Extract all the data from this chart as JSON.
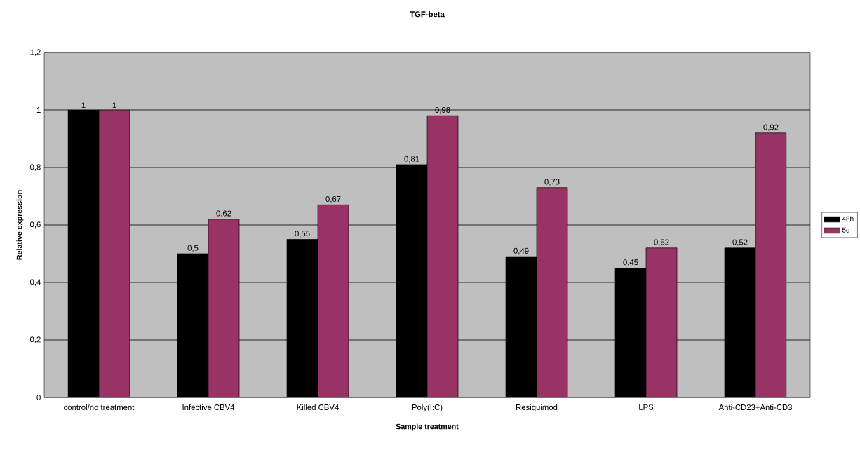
{
  "chart_data": {
    "type": "bar",
    "title": "TGF-beta",
    "xlabel": "Sample treatment",
    "ylabel": "Relative expression",
    "categories": [
      "control/no treatment",
      "Infective CBV4",
      "Killed CBV4",
      "Poly(I:C)",
      "Resiquimod",
      "LPS",
      "Anti-CD23+Anti-CD3"
    ],
    "series": [
      {
        "name": "48h",
        "color": "#000000",
        "values": [
          1,
          0.5,
          0.55,
          0.81,
          0.49,
          0.45,
          0.52
        ],
        "value_labels": [
          "1",
          "0,5",
          "0,55",
          "0,81",
          "0,49",
          "0,45",
          "0,52"
        ]
      },
      {
        "name": "5d",
        "color": "#993366",
        "values": [
          1,
          0.62,
          0.67,
          0.98,
          0.73,
          0.52,
          0.92
        ],
        "value_labels": [
          "1",
          "0,62",
          "0,67",
          "0,98",
          "0,73",
          "0,52",
          "0,92"
        ]
      }
    ],
    "ylim": [
      0,
      1.2
    ],
    "yticks": [
      0,
      {
        "value": 0.2,
        "label": "0,2"
      },
      {
        "value": 0.4,
        "label": "0,4"
      },
      {
        "value": 0.6,
        "label": "0,6"
      },
      {
        "value": 0.8,
        "label": "0,8"
      },
      1,
      {
        "value": 1.2,
        "label": "1,2"
      }
    ],
    "grid": "y",
    "legend": "right"
  }
}
